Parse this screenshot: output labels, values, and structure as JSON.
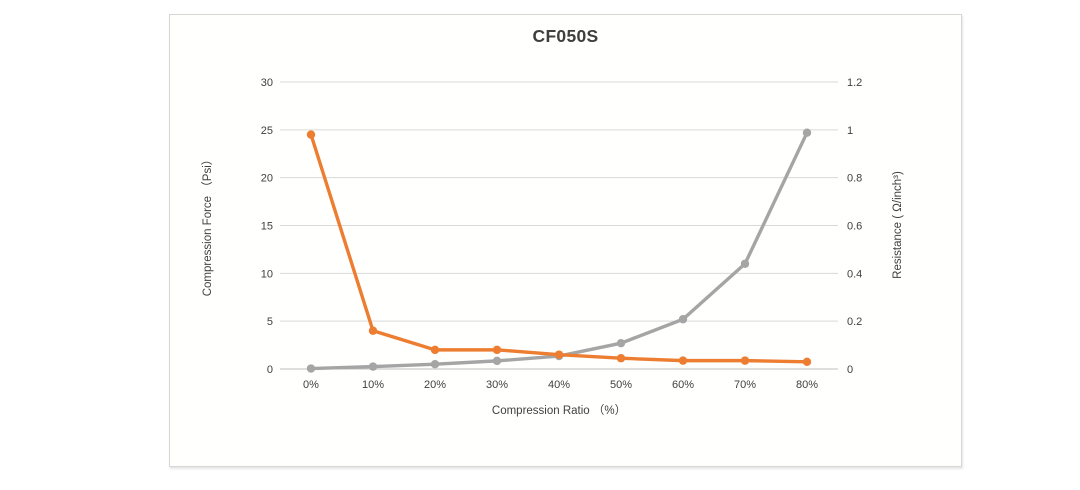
{
  "chart_data": {
    "type": "line",
    "title": "CF050S",
    "categories": [
      "0%",
      "10%",
      "20%",
      "30%",
      "40%",
      "50%",
      "60%",
      "70%",
      "80%"
    ],
    "x_axis": {
      "title": "Compression Ratio （%）"
    },
    "left_axis": {
      "title": "Compression Force （Psi）",
      "range": [
        0,
        30
      ],
      "tick_values": [
        0,
        5,
        10,
        15,
        20,
        25,
        30
      ],
      "tick_labels": [
        "0",
        "5",
        "10",
        "15",
        "20",
        "25",
        "30"
      ]
    },
    "right_axis": {
      "title": "Resistance ( Ω/inch³)",
      "range": [
        0,
        1.2
      ],
      "tick_values": [
        0,
        0.2,
        0.4,
        0.6,
        0.8,
        1,
        1.2
      ],
      "tick_labels": [
        "0",
        "0.2",
        "0.4",
        "0.6",
        "0.8",
        "1",
        "1.2"
      ]
    },
    "grid": true,
    "legend": "none",
    "colors": {
      "gridline": "#d9d9d9",
      "baseline": "#bfbfbf",
      "tick_text": "#404040"
    },
    "series": [
      {
        "name": "Compression Force",
        "axis": "left",
        "color": "#a5a5a5",
        "values": [
          0.05,
          0.25,
          0.5,
          0.85,
          1.35,
          2.7,
          5.2,
          11,
          24.7
        ]
      },
      {
        "name": "Resistance",
        "axis": "right",
        "color": "#ed7d31",
        "values": [
          0.98,
          0.16,
          0.08,
          0.08,
          0.06,
          0.045,
          0.035,
          0.035,
          0.03
        ]
      }
    ]
  }
}
